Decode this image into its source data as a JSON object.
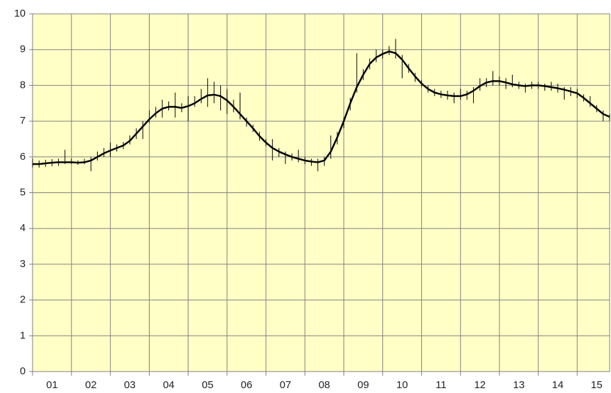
{
  "chart_data": {
    "type": "line",
    "categories": [
      "01",
      "02",
      "03",
      "04",
      "05",
      "06",
      "07",
      "08",
      "09",
      "10",
      "11",
      "12",
      "13",
      "14",
      "15"
    ],
    "x": [
      0,
      2,
      4,
      6,
      8,
      10,
      12,
      14,
      16,
      18,
      20,
      22,
      24,
      26,
      28,
      30,
      32,
      34,
      36,
      38,
      40,
      42,
      44,
      46,
      48,
      50,
      52,
      54,
      56,
      58,
      60,
      62,
      64,
      66,
      68,
      70,
      72,
      74,
      76,
      78,
      80,
      82,
      84,
      86,
      88,
      90,
      92,
      94,
      96,
      98,
      100,
      102,
      104,
      106,
      108,
      110,
      112,
      114,
      116,
      118,
      120,
      122,
      124,
      126,
      128,
      130,
      132,
      134,
      136,
      138,
      140,
      142,
      144,
      146,
      148,
      150,
      152,
      154,
      156,
      158,
      160,
      162,
      164,
      166,
      168,
      170,
      172,
      174,
      176,
      178
    ],
    "values": [
      5.8,
      5.8,
      5.82,
      5.84,
      5.85,
      5.85,
      5.85,
      5.84,
      5.85,
      5.9,
      6.0,
      6.1,
      6.18,
      6.25,
      6.32,
      6.45,
      6.65,
      6.85,
      7.05,
      7.22,
      7.35,
      7.4,
      7.4,
      7.37,
      7.42,
      7.5,
      7.62,
      7.72,
      7.74,
      7.7,
      7.58,
      7.4,
      7.2,
      7.0,
      6.8,
      6.58,
      6.4,
      6.25,
      6.15,
      6.07,
      6.0,
      5.95,
      5.9,
      5.87,
      5.85,
      5.9,
      6.15,
      6.55,
      7.0,
      7.5,
      7.95,
      8.3,
      8.6,
      8.78,
      8.88,
      8.95,
      8.9,
      8.72,
      8.48,
      8.25,
      8.05,
      7.9,
      7.8,
      7.75,
      7.72,
      7.7,
      7.7,
      7.75,
      7.85,
      7.98,
      8.08,
      8.12,
      8.12,
      8.08,
      8.03,
      8.0,
      7.98,
      8.0,
      8.0,
      7.98,
      7.95,
      7.92,
      7.88,
      7.83,
      7.78,
      7.65,
      7.5,
      7.35,
      7.2,
      7.12
    ],
    "high": [
      5.95,
      5.9,
      5.92,
      5.94,
      5.95,
      6.2,
      5.95,
      5.9,
      5.95,
      6.0,
      6.15,
      6.25,
      6.4,
      6.35,
      6.42,
      6.6,
      6.8,
      7.0,
      7.3,
      7.4,
      7.6,
      7.55,
      7.8,
      7.5,
      7.7,
      7.7,
      7.9,
      8.2,
      8.1,
      8.0,
      7.9,
      7.6,
      7.8,
      7.1,
      6.9,
      6.7,
      6.5,
      6.5,
      6.25,
      6.15,
      6.1,
      6.2,
      6.0,
      5.95,
      5.95,
      6.0,
      6.6,
      6.7,
      7.1,
      7.65,
      8.9,
      8.45,
      8.75,
      9.0,
      9.0,
      9.1,
      9.3,
      8.85,
      8.6,
      8.35,
      8.15,
      8.0,
      7.9,
      7.85,
      7.85,
      7.8,
      7.9,
      7.85,
      7.95,
      8.2,
      8.2,
      8.4,
      8.25,
      8.2,
      8.3,
      8.1,
      8.05,
      8.1,
      8.1,
      8.05,
      8.1,
      8.05,
      7.95,
      7.95,
      7.9,
      7.75,
      7.7,
      7.45,
      7.3,
      7.2
    ],
    "low": [
      5.7,
      5.7,
      5.72,
      5.74,
      5.75,
      5.8,
      5.8,
      5.78,
      5.8,
      5.6,
      5.9,
      6.0,
      6.0,
      6.15,
      6.22,
      6.35,
      6.5,
      6.5,
      6.95,
      7.1,
      7.1,
      7.3,
      7.1,
      7.25,
      7.0,
      7.4,
      7.5,
      7.4,
      7.5,
      7.3,
      7.2,
      7.25,
      7.05,
      6.85,
      6.7,
      6.45,
      6.3,
      5.9,
      6.0,
      5.8,
      5.9,
      5.85,
      5.8,
      5.75,
      5.6,
      5.75,
      5.95,
      6.35,
      6.8,
      7.3,
      7.8,
      8.15,
      8.45,
      8.65,
      8.75,
      8.85,
      8.75,
      8.2,
      8.35,
      8.1,
      7.95,
      7.8,
      7.7,
      7.65,
      7.6,
      7.5,
      7.6,
      7.6,
      7.5,
      7.85,
      7.95,
      8.0,
      8.0,
      7.9,
      7.95,
      7.9,
      7.8,
      7.9,
      7.9,
      7.85,
      7.85,
      7.8,
      7.6,
      7.7,
      7.65,
      7.55,
      7.4,
      7.25,
      7.0,
      7.0
    ],
    "color": "#000000",
    "xlim": [
      0,
      178
    ],
    "xticks": [
      0,
      12,
      24,
      36,
      48,
      60,
      72,
      84,
      96,
      108,
      120,
      132,
      144,
      156,
      168
    ],
    "ylim": [
      0,
      10
    ],
    "yticks": [
      0,
      1,
      2,
      3,
      4,
      5,
      6,
      7,
      8,
      9,
      10
    ],
    "grid": true
  }
}
